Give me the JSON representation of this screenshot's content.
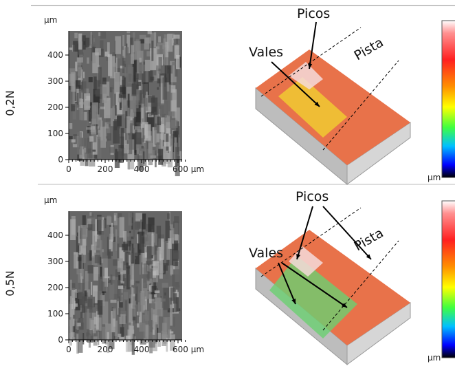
{
  "rows": [
    {
      "label": "0,2N",
      "micrograph": {
        "unit": "µm",
        "yticks": [
          0,
          100,
          200,
          300,
          400
        ],
        "xticks": [
          0,
          200,
          400,
          {
            "value": 600,
            "label": "600 µm"
          }
        ]
      },
      "view3d": {
        "annotations": [
          "Picos",
          "Vales",
          "Pista"
        ]
      },
      "colorbar_unit": "µm"
    },
    {
      "label": "0,5N",
      "micrograph": {
        "unit": "µm",
        "yticks": [
          0,
          100,
          200,
          300,
          400
        ],
        "xticks": [
          0,
          200,
          400,
          {
            "value": 600,
            "label": "600 µm"
          }
        ]
      },
      "view3d": {
        "annotations": [
          "Picos",
          "Vales",
          "Pista"
        ]
      },
      "colorbar_unit": "µm"
    }
  ]
}
